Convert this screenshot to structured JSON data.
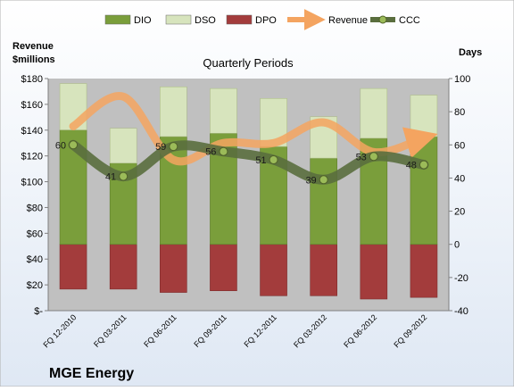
{
  "chart_data": {
    "type": "bar",
    "title": "Quarterly Periods",
    "company": "MGE Energy",
    "ylabel_left": "Revenue\n$millions",
    "ylabel_right": "Days",
    "categories": [
      "FQ 12-2010",
      "FQ 03-2011",
      "FQ 06-2011",
      "FQ 09-2011",
      "FQ 12-2011",
      "FQ 03-2012",
      "FQ 06-2012",
      "FQ 09-2012"
    ],
    "ylim_left": [
      0,
      180
    ],
    "ylim_right": [
      -40,
      100
    ],
    "left_ticks": [
      "$-",
      "$20",
      "$40",
      "$60",
      "$80",
      "$100",
      "$120",
      "$140",
      "$160",
      "$180"
    ],
    "right_ticks": [
      "-40",
      "-20",
      "0",
      "20",
      "40",
      "60",
      "80",
      "100"
    ],
    "series": [
      {
        "name": "DIO",
        "axis": "right",
        "color": "#7a9e3b",
        "values": [
          69,
          49,
          65,
          67,
          59,
          52,
          64,
          65
        ]
      },
      {
        "name": "DSO",
        "axis": "right",
        "color": "#d7e4bd",
        "values": [
          28,
          21,
          30,
          27,
          29,
          25,
          30,
          25
        ]
      },
      {
        "name": "DPO",
        "axis": "right",
        "color": "#a33c3c",
        "values": [
          -27,
          -27,
          -29,
          -28,
          -31,
          -31,
          -33,
          -32
        ]
      },
      {
        "name": "Revenue",
        "axis": "left",
        "color": "#f4a460",
        "values": [
          143,
          166,
          117,
          130,
          130,
          146,
          123,
          134
        ]
      },
      {
        "name": "CCC",
        "axis": "right",
        "color": "#5a6e3e",
        "values": [
          60,
          41,
          59,
          56,
          51,
          39,
          53,
          48
        ]
      }
    ],
    "grid": false,
    "legend_position": "top"
  },
  "colors": {
    "plot_bg": "#c0c0c0",
    "page_bg": "#ffffff"
  }
}
